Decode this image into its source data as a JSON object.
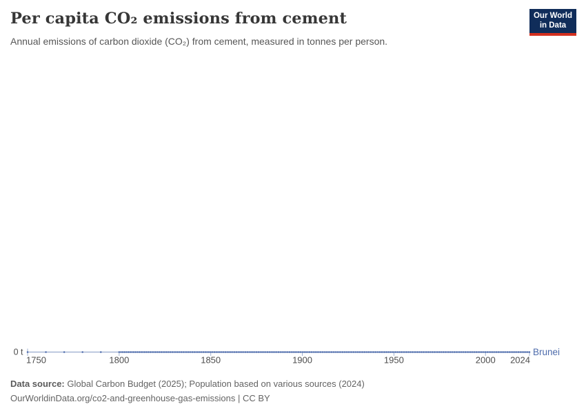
{
  "header": {
    "title": "Per capita CO₂ emissions from cement",
    "subtitle": "Annual emissions of carbon dioxide (CO₂) from cement, measured in tonnes per person.",
    "logo": {
      "line1": "Our World",
      "line2": "in Data"
    }
  },
  "chart_data": {
    "type": "line",
    "title": "Per capita CO₂ emissions from cement",
    "subtitle": "Annual emissions of carbon dioxide (CO₂) from cement, measured in tonnes per person.",
    "xlim": [
      1750,
      2024
    ],
    "ylim": [
      0,
      0
    ],
    "grid": false,
    "legend_position": "label-at-line-end",
    "x_ticks": [
      "1750",
      "1800",
      "1850",
      "1900",
      "1950",
      "2000",
      "2024"
    ],
    "y_ticks": [
      "0 t"
    ],
    "y_axis_unit": "t",
    "series": [
      {
        "name": "Brunei",
        "color": "#4d6bab",
        "points": {
          "x_start": 1750,
          "x_end": 2024,
          "step_change_at": 1800,
          "step_before_change": 10,
          "step_after_change": 1,
          "y_constant": 0,
          "description": "Per capita CO₂ emissions from cement in Brunei are 0 tonnes per person for every plotted year from 1750 (decadal points) through 1800–2024 (annual points); the line is flat at 0 t."
        }
      }
    ]
  },
  "footer": {
    "source_label": "Data source:",
    "source_text": "Global Carbon Budget (2025); Population based on various sources (2024)",
    "citation": "OurWorldinData.org/co2-and-greenhouse-gas-emissions | CC BY"
  },
  "colors": {
    "series_blue": "#4d6bab",
    "line_connector": "rgba(77,107,171,0.5)",
    "tick_mark": "#9fb0cf",
    "tick_label": "#4d4d4d",
    "logo_navy": "#102d5a",
    "logo_red": "#d3301f",
    "title_text": "#373737",
    "subtitle_text": "#565656",
    "footer_text": "#636363"
  }
}
